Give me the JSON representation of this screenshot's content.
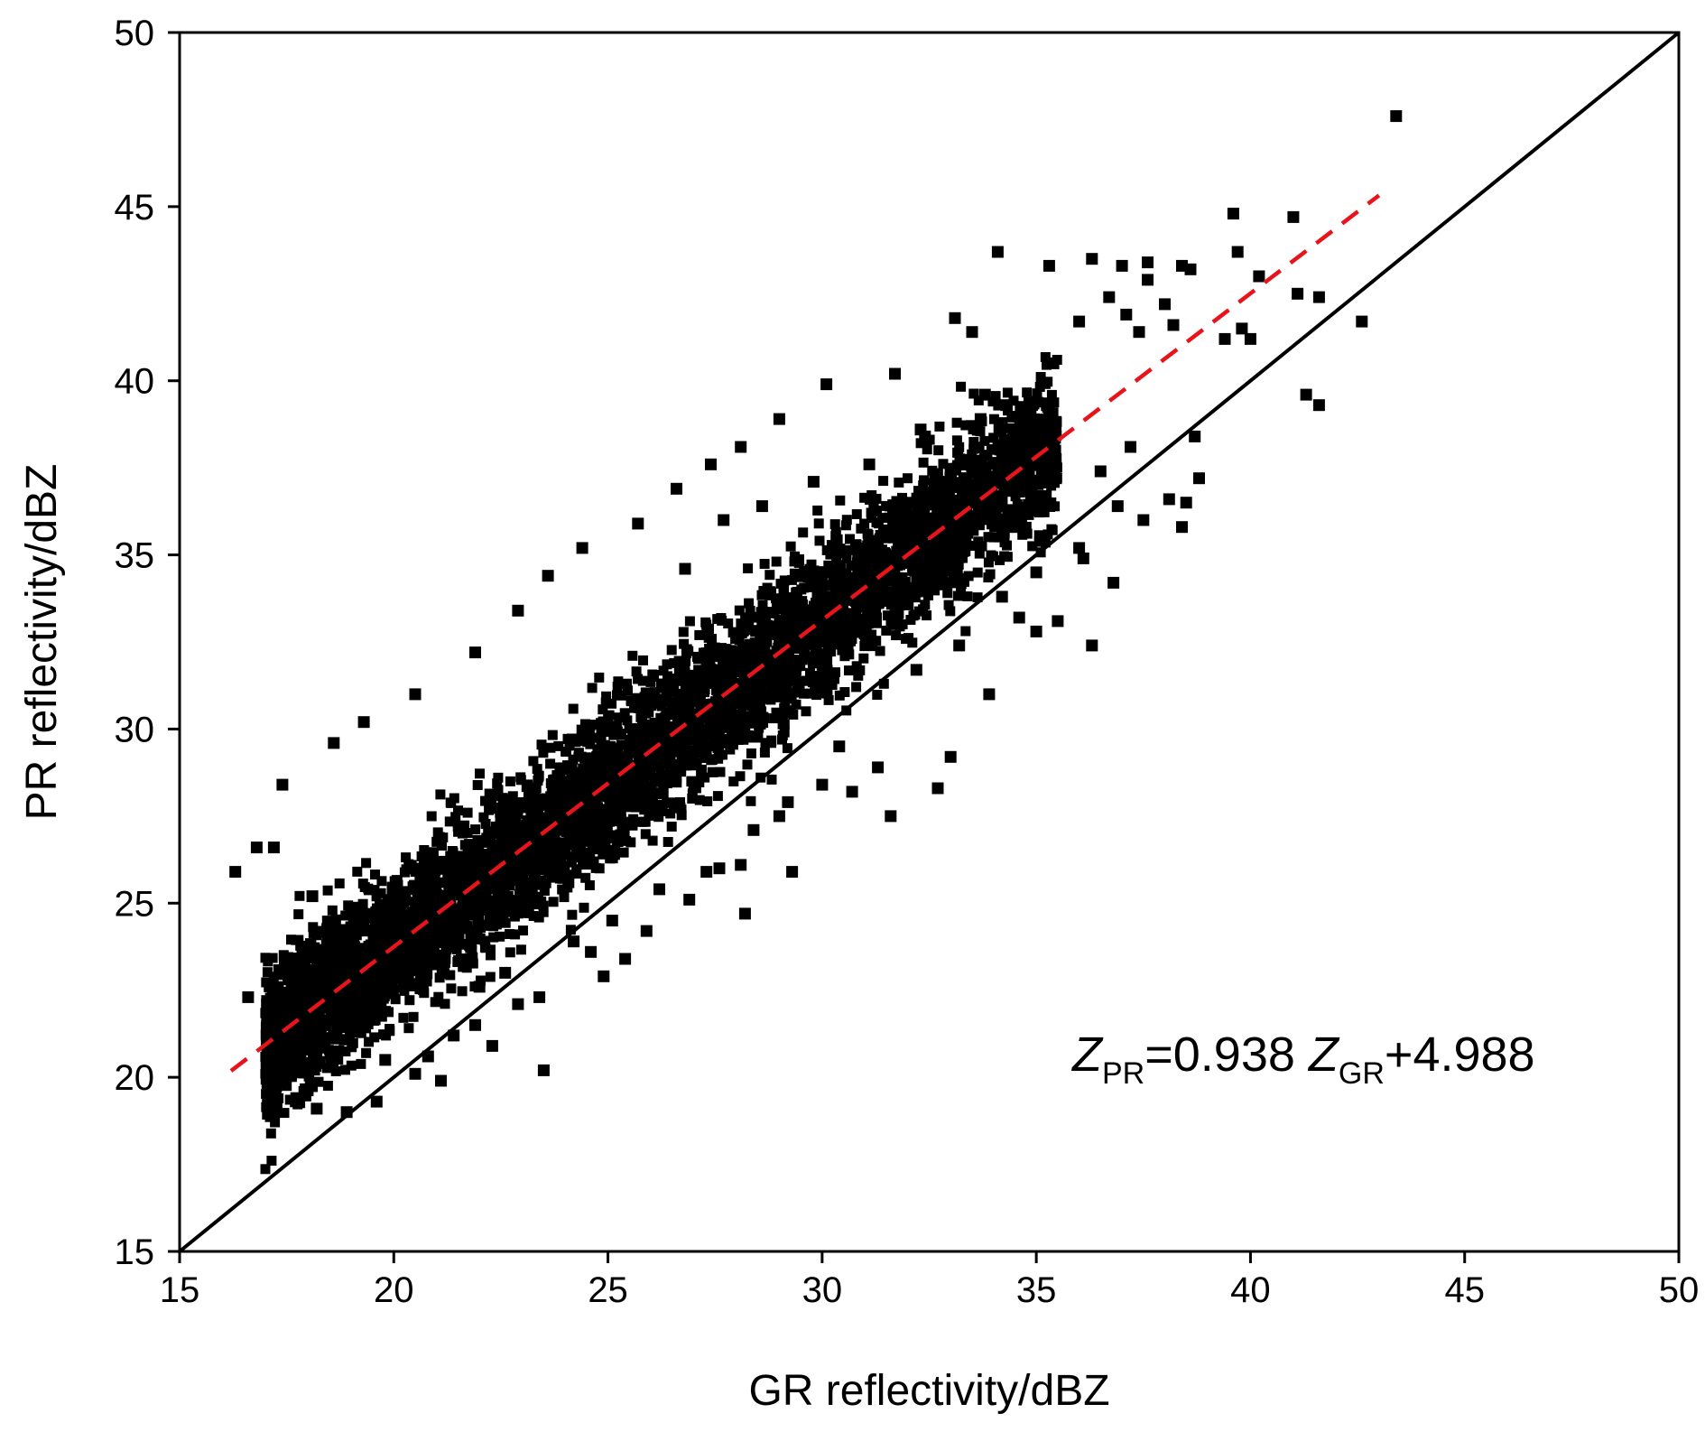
{
  "chart_data": {
    "type": "scatter",
    "title": "",
    "xlabel": "GR reflectivity/dBZ",
    "ylabel": "PR reflectivity/dBZ",
    "xlim": [
      15,
      50
    ],
    "ylim": [
      15,
      50
    ],
    "xticks": [
      15,
      20,
      25,
      30,
      35,
      40,
      45,
      50
    ],
    "yticks": [
      15,
      20,
      25,
      30,
      35,
      40,
      45,
      50
    ],
    "grid": false,
    "marker": "square",
    "marker_color": "#000000",
    "annotation": {
      "var1": "Z",
      "sub1": "PR",
      "middle": "=0.938 ",
      "var2": "Z",
      "sub2": "GR",
      "tail": "+4.988"
    },
    "reference_line": {
      "label": "1:1",
      "slope": 1,
      "intercept": 0,
      "color": "#000000",
      "style": "solid"
    },
    "fit_line": {
      "slope": 0.938,
      "intercept": 4.988,
      "x_range": [
        16.2,
        43.0
      ],
      "color": "#e8141b",
      "style": "dashed"
    },
    "series": [
      {
        "x": [
          43.4,
          39.6,
          41.0,
          34.1,
          39.7,
          35.3,
          36.3,
          37.0,
          37.6,
          38.4,
          38.6,
          41.1,
          40.2,
          37.6,
          36.7,
          38.0,
          41.6,
          42.6,
          33.1,
          33.5,
          36.0,
          37.1,
          37.4,
          38.2,
          39.4,
          39.8,
          40.0,
          41.3,
          41.6,
          38.7,
          38.8,
          38.5,
          36.9,
          36.0,
          36.8,
          34.6,
          35.0,
          36.3,
          37.5,
          38.1,
          38.4,
          37.2,
          36.5,
          30.1,
          31.7,
          33.8,
          32.3,
          29.0,
          28.1,
          27.4,
          26.6,
          25.7,
          24.4,
          23.6,
          22.9,
          21.9,
          20.5,
          19.3,
          18.6,
          17.4,
          16.8,
          16.3,
          17.2,
          18.1,
          19.0,
          20.1,
          21.0,
          22.0,
          22.9,
          17.6,
          16.6,
          17.4,
          32.2,
          33.2,
          34.2,
          35.0,
          36.1,
          35.5,
          33.0,
          33.9,
          30.4,
          31.3,
          30.7,
          29.2,
          31.6,
          32.7,
          27.6,
          28.4,
          27.3,
          26.9,
          28.2,
          29.3,
          28.1,
          29.0,
          30.0,
          24.9,
          25.4,
          25.9,
          23.4,
          24.6,
          23.5,
          21.9,
          20.8,
          19.6,
          22.3,
          21.4,
          22.6,
          24.2,
          25.1,
          26.2,
          20.5,
          19.8,
          18.2,
          18.9,
          21.1,
          26.8,
          27.7,
          28.6,
          29.8,
          31.1,
          32.4,
          33.7,
          34.3,
          35.4
        ],
        "y": [
          47.6,
          44.8,
          44.7,
          43.7,
          43.7,
          43.3,
          43.5,
          43.3,
          43.4,
          43.3,
          43.2,
          42.5,
          43.0,
          42.9,
          42.4,
          42.2,
          42.4,
          41.7,
          41.8,
          41.4,
          41.7,
          41.9,
          41.4,
          41.6,
          41.2,
          41.5,
          41.2,
          39.6,
          39.3,
          38.4,
          37.2,
          36.5,
          36.4,
          35.2,
          34.2,
          33.2,
          32.8,
          32.4,
          36.0,
          36.6,
          35.8,
          38.1,
          37.4,
          39.9,
          40.2,
          39.6,
          38.6,
          38.9,
          38.1,
          37.6,
          36.9,
          35.9,
          35.2,
          34.4,
          33.4,
          32.2,
          31.0,
          30.2,
          29.6,
          28.4,
          26.6,
          25.9,
          26.6,
          25.2,
          24.7,
          24.0,
          23.4,
          22.6,
          22.1,
          20.1,
          22.3,
          21.0,
          31.7,
          32.4,
          33.8,
          34.5,
          34.9,
          33.1,
          29.2,
          31.0,
          29.5,
          28.9,
          28.2,
          27.9,
          27.5,
          28.3,
          26.0,
          27.1,
          25.9,
          25.1,
          24.7,
          25.9,
          26.1,
          27.5,
          28.4,
          22.9,
          23.4,
          24.2,
          22.3,
          23.6,
          20.2,
          21.5,
          20.6,
          19.3,
          20.9,
          21.2,
          23.0,
          23.9,
          24.5,
          25.4,
          20.1,
          20.5,
          19.1,
          19.0,
          19.9,
          34.6,
          36.0,
          36.4,
          37.1,
          37.6,
          38.4,
          38.9,
          39.3,
          40.5
        ]
      }
    ]
  }
}
